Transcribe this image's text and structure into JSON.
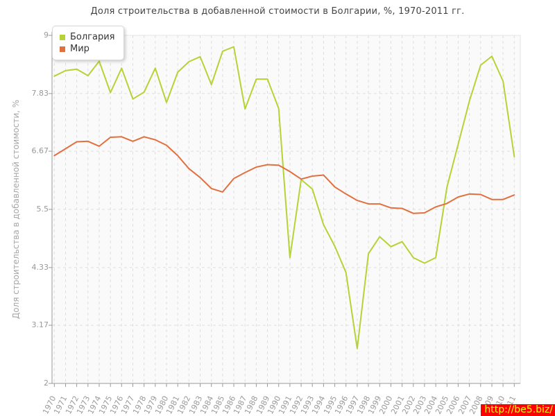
{
  "page": {
    "title": "Доля строительства в добавленной стоимости в Болгарии, %, 1970-2011 гг."
  },
  "watermark": {
    "text": "http://be5.biz/",
    "bg_color": "#ff0000",
    "text_color": "#ffff00"
  },
  "chart_data": {
    "type": "line",
    "title": "Доля строительства в добавленной стоимости в Болгарии, %, 1970-2011 гг.",
    "ylabel": "Доля строительства в добавленной стоимости, %",
    "xlabel": "",
    "ylim": [
      2,
      9
    ],
    "yticks": [
      "9",
      "7.83",
      "6.67",
      "5.5",
      "4.33",
      "3.17",
      "2"
    ],
    "ytick_values": [
      9,
      7.83,
      6.67,
      5.5,
      4.33,
      3.17,
      2
    ],
    "grid": "dashed",
    "legend_position": "top-left",
    "x": [
      1970,
      1971,
      1972,
      1973,
      1974,
      1975,
      1976,
      1977,
      1978,
      1979,
      1980,
      1981,
      1982,
      1983,
      1984,
      1985,
      1986,
      1987,
      1988,
      1989,
      1990,
      1991,
      1992,
      1993,
      1994,
      1995,
      1996,
      1997,
      1998,
      1999,
      2000,
      2001,
      2002,
      2003,
      2004,
      2005,
      2006,
      2007,
      2008,
      2009,
      2010,
      2011
    ],
    "series": [
      {
        "name": "Болгария",
        "color": "#b5d334",
        "values": [
          8.18,
          8.29,
          8.32,
          8.19,
          8.48,
          7.85,
          8.34,
          7.72,
          7.86,
          8.34,
          7.65,
          8.26,
          8.47,
          8.57,
          8.01,
          8.68,
          8.77,
          7.52,
          8.12,
          8.12,
          7.53,
          4.53,
          6.1,
          5.91,
          5.19,
          4.76,
          4.23,
          2.7,
          4.61,
          4.95,
          4.75,
          4.85,
          4.53,
          4.42,
          4.53,
          5.95,
          6.81,
          7.68,
          8.4,
          8.58,
          8.08,
          6.56
        ]
      },
      {
        "name": "Мир",
        "color": "#e2703f",
        "values": [
          6.58,
          6.72,
          6.86,
          6.87,
          6.77,
          6.95,
          6.96,
          6.87,
          6.96,
          6.9,
          6.79,
          6.58,
          6.32,
          6.14,
          5.92,
          5.85,
          6.12,
          6.24,
          6.35,
          6.4,
          6.39,
          6.26,
          6.11,
          6.17,
          6.19,
          5.95,
          5.81,
          5.68,
          5.61,
          5.61,
          5.53,
          5.52,
          5.42,
          5.43,
          5.55,
          5.62,
          5.75,
          5.81,
          5.8,
          5.7,
          5.7,
          5.79
        ]
      }
    ],
    "colors": {
      "plot_bg": "#fafafa",
      "grid": "#dedede",
      "frame": "#e4e4e4",
      "axis": "#9a9a9a",
      "tick_text": "#999999",
      "title_text": "#444444"
    }
  }
}
